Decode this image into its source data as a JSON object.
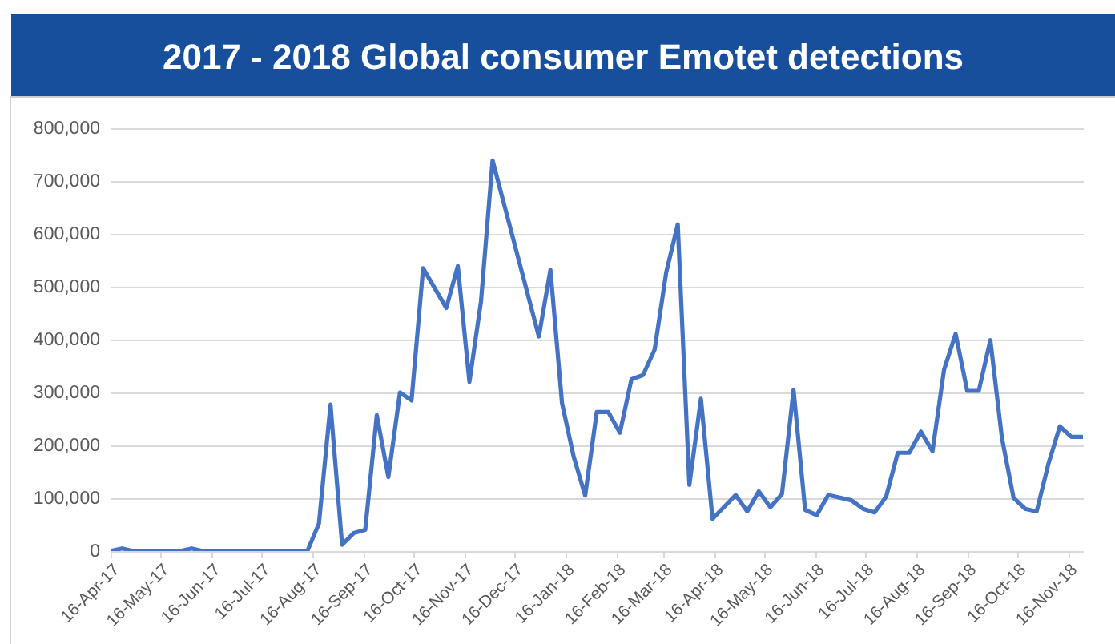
{
  "chart_data": {
    "type": "line",
    "title": "2017 - 2018 Global consumer Emotet detections",
    "x": [
      "2017-04-16",
      "2017-04-23",
      "2017-04-30",
      "2017-05-28",
      "2017-06-04",
      "2017-06-11",
      "2017-08-13",
      "2017-08-20",
      "2017-08-27",
      "2017-09-03",
      "2017-09-10",
      "2017-09-17",
      "2017-09-24",
      "2017-10-01",
      "2017-10-08",
      "2017-10-15",
      "2017-10-22",
      "2017-11-05",
      "2017-11-12",
      "2017-11-19",
      "2017-11-26",
      "2017-12-03",
      "2017-12-31",
      "2018-01-07",
      "2018-01-14",
      "2018-01-21",
      "2018-01-28",
      "2018-02-04",
      "2018-02-11",
      "2018-02-18",
      "2018-02-25",
      "2018-03-04",
      "2018-03-11",
      "2018-03-18",
      "2018-03-25",
      "2018-04-01",
      "2018-04-08",
      "2018-04-15",
      "2018-04-29",
      "2018-05-06",
      "2018-05-13",
      "2018-05-20",
      "2018-05-27",
      "2018-06-03",
      "2018-06-10",
      "2018-06-17",
      "2018-06-24",
      "2018-07-08",
      "2018-07-15",
      "2018-07-22",
      "2018-07-29",
      "2018-08-05",
      "2018-08-12",
      "2018-08-19",
      "2018-08-26",
      "2018-09-02",
      "2018-09-09",
      "2018-09-16",
      "2018-09-23",
      "2018-09-30",
      "2018-10-07",
      "2018-10-14",
      "2018-10-21",
      "2018-10-28",
      "2018-11-04",
      "2018-11-11",
      "2018-11-18",
      "2018-11-25"
    ],
    "series": [
      {
        "color": "#4472c4",
        "values": [
          0,
          5000,
          0,
          0,
          5000,
          0,
          0,
          52000,
          277000,
          12000,
          34000,
          40000,
          257000,
          140000,
          300000,
          285000,
          535000,
          460000,
          539000,
          320000,
          472000,
          739000,
          406000,
          532000,
          280000,
          179000,
          105000,
          263000,
          263000,
          224000,
          325000,
          333000,
          381000,
          527000,
          618000,
          125000,
          288000,
          61000,
          106000,
          75000,
          113000,
          83000,
          108000,
          305000,
          78000,
          68000,
          106000,
          96000,
          80000,
          73000,
          103000,
          186000,
          186000,
          226000,
          189000,
          343000,
          411000,
          303000,
          303000,
          399000,
          214000,
          101000,
          80000,
          75000,
          164000,
          236000,
          216000,
          216000
        ]
      }
    ],
    "xlim": [
      "2017-04-16",
      "2018-11-25"
    ],
    "xticks": [
      {
        "value": "2017-04-16",
        "label": "16-Apr-17"
      },
      {
        "value": "2017-05-16",
        "label": "16-May-17"
      },
      {
        "value": "2017-06-16",
        "label": "16-Jun-17"
      },
      {
        "value": "2017-07-16",
        "label": "16-Jul-17"
      },
      {
        "value": "2017-08-16",
        "label": "16-Aug-17"
      },
      {
        "value": "2017-09-16",
        "label": "16-Sep-17"
      },
      {
        "value": "2017-10-16",
        "label": "16-Oct-17"
      },
      {
        "value": "2017-11-16",
        "label": "16-Nov-17"
      },
      {
        "value": "2017-12-16",
        "label": "16-Dec-17"
      },
      {
        "value": "2018-01-16",
        "label": "16-Jan-18"
      },
      {
        "value": "2018-02-16",
        "label": "16-Feb-18"
      },
      {
        "value": "2018-03-16",
        "label": "16-Mar-18"
      },
      {
        "value": "2018-04-16",
        "label": "16-Apr-18"
      },
      {
        "value": "2018-05-16",
        "label": "16-May-18"
      },
      {
        "value": "2018-06-16",
        "label": "16-Jun-18"
      },
      {
        "value": "2018-07-16",
        "label": "16-Jul-18"
      },
      {
        "value": "2018-08-16",
        "label": "16-Aug-18"
      },
      {
        "value": "2018-09-16",
        "label": "16-Sep-18"
      },
      {
        "value": "2018-10-16",
        "label": "16-Oct-18"
      },
      {
        "value": "2018-11-16",
        "label": "16-Nov-18"
      }
    ],
    "ylim": [
      0,
      800000
    ],
    "yticks": [
      0,
      {
        "value": 100000,
        "label": "100,000"
      },
      {
        "value": 200000,
        "label": "200,000"
      },
      {
        "value": 300000,
        "label": "300,000"
      },
      {
        "value": 400000,
        "label": "400,000"
      },
      {
        "value": 500000,
        "label": "500,000"
      },
      {
        "value": 600000,
        "label": "600,000"
      },
      {
        "value": 700000,
        "label": "700,000"
      },
      {
        "value": 800000,
        "label": "800,000"
      }
    ],
    "grid": "y"
  }
}
